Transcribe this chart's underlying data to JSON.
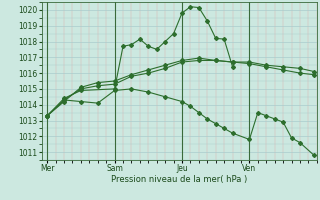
{
  "background_color": "#cce8e0",
  "grid_color": "#aacccc",
  "minor_grid_color": "#ddaaaa",
  "line_color": "#2d6e2d",
  "marker_color": "#2d6e2d",
  "xlabel": "Pression niveau de la mer( hPa )",
  "ylim": [
    1010.5,
    1020.5
  ],
  "yticks": [
    1011,
    1012,
    1013,
    1014,
    1015,
    1016,
    1017,
    1018,
    1019,
    1020
  ],
  "xtick_labels": [
    "Mer",
    "Sam",
    "Jeu",
    "Ven"
  ],
  "xtick_positions": [
    0,
    24,
    48,
    72
  ],
  "xlim": [
    -2,
    96
  ],
  "vline_positions": [
    0,
    24,
    48,
    72
  ],
  "series": [
    {
      "x": [
        0,
        6,
        12,
        24,
        27,
        30,
        33,
        36,
        39,
        42,
        45,
        48,
        51,
        54,
        57,
        60,
        63,
        66
      ],
      "y": [
        1013.3,
        1014.4,
        1014.9,
        1015.0,
        1017.7,
        1017.8,
        1018.15,
        1017.7,
        1017.5,
        1018.0,
        1018.5,
        1019.8,
        1020.2,
        1020.15,
        1019.3,
        1018.2,
        1018.15,
        1016.4
      ]
    },
    {
      "x": [
        0,
        6,
        12,
        18,
        24,
        30,
        36,
        42,
        48,
        54,
        60,
        66,
        72,
        78,
        84,
        90,
        95
      ],
      "y": [
        1013.3,
        1014.3,
        1015.0,
        1015.2,
        1015.3,
        1015.8,
        1016.0,
        1016.3,
        1016.7,
        1016.8,
        1016.8,
        1016.7,
        1016.6,
        1016.4,
        1016.2,
        1016.0,
        1015.9
      ]
    },
    {
      "x": [
        0,
        6,
        12,
        18,
        24,
        30,
        36,
        42,
        48,
        54,
        60,
        66,
        72,
        78,
        84,
        90,
        95
      ],
      "y": [
        1013.3,
        1014.2,
        1015.1,
        1015.4,
        1015.5,
        1015.9,
        1016.2,
        1016.5,
        1016.8,
        1016.95,
        1016.8,
        1016.7,
        1016.7,
        1016.5,
        1016.4,
        1016.3,
        1016.1
      ]
    },
    {
      "x": [
        0,
        6,
        12,
        18,
        24,
        30,
        36,
        42,
        48,
        51,
        54,
        57,
        60,
        63,
        66,
        72,
        75,
        78,
        81,
        84,
        87,
        90,
        95
      ],
      "y": [
        1013.3,
        1014.3,
        1014.2,
        1014.1,
        1014.9,
        1015.0,
        1014.8,
        1014.5,
        1014.2,
        1013.9,
        1013.5,
        1013.1,
        1012.8,
        1012.5,
        1012.2,
        1011.8,
        1013.5,
        1013.3,
        1013.1,
        1012.9,
        1011.9,
        1011.6,
        1010.8
      ]
    }
  ]
}
